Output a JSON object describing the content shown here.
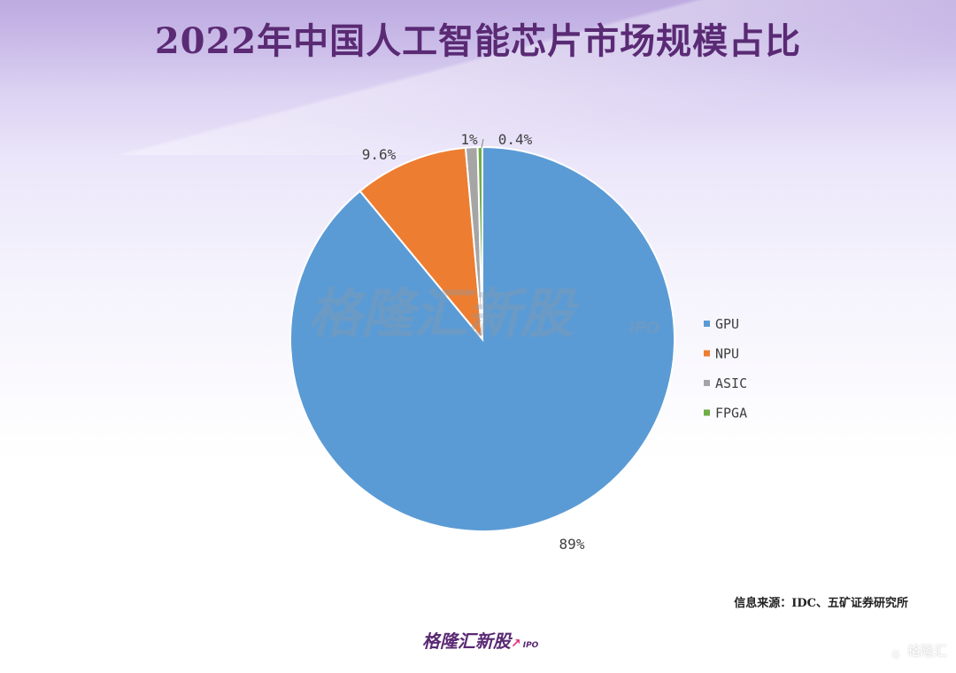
{
  "title": "2022年中国人工智能芯片市场规模占比",
  "chart_data": {
    "type": "pie",
    "title": "2022年中国人工智能芯片市场规模占比",
    "slices": [
      {
        "name": "GPU",
        "value": 89,
        "label": "89%",
        "color": "#5b9bd5"
      },
      {
        "name": "NPU",
        "value": 9.6,
        "label": "9.6%",
        "color": "#ed7d31"
      },
      {
        "name": "ASIC",
        "value": 1,
        "label": "1%",
        "color": "#a5a5a5"
      },
      {
        "name": "FPGA",
        "value": 0.4,
        "label": "0.4%",
        "color": "#70ad47"
      }
    ],
    "legend_position": "right"
  },
  "watermark": {
    "text": "格隆汇新股",
    "sub": "IPO"
  },
  "source": "信息来源：IDC、五矿证券研究所",
  "brand": {
    "text": "格隆汇新股",
    "sub": "IPO"
  },
  "corner_logo": {
    "text": "格隆汇",
    "mark": "G"
  }
}
